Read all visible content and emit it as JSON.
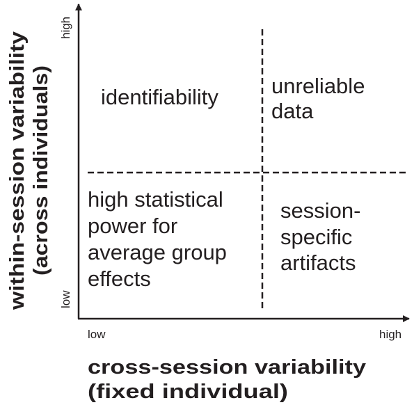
{
  "x_axis": {
    "title_line1": "cross-session variability",
    "title_line2": "(fixed individual)",
    "low_label": "low",
    "high_label": "high"
  },
  "y_axis": {
    "title_line1": "within-session variability",
    "title_line2": "(across individuals)",
    "low_label": "low",
    "high_label": "high"
  },
  "quadrants": {
    "top_left": [
      "identifiability"
    ],
    "top_right": [
      "unreliable",
      "data"
    ],
    "bottom_left": [
      "high statistical",
      "power for",
      "average group",
      "effects"
    ],
    "bottom_right": [
      "session-",
      "specific",
      "artifacts"
    ]
  }
}
